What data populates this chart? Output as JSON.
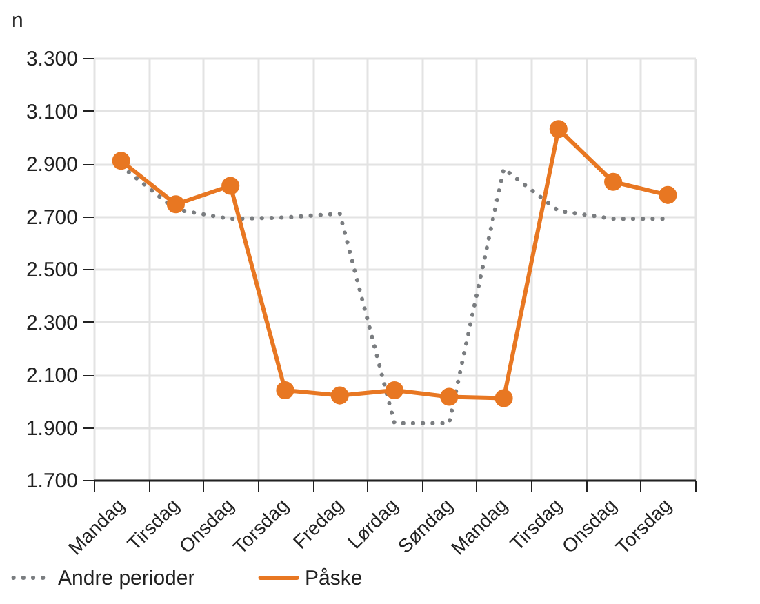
{
  "chart_data": {
    "type": "line",
    "ylabel": "n",
    "categories": [
      "Mandag",
      "Tirsdag",
      "Onsdag",
      "Torsdag",
      "Fredag",
      "Lørdag",
      "Søndag",
      "Mandag",
      "Tirsdag",
      "Onsdag",
      "Torsdag"
    ],
    "series": [
      {
        "name": "Andre perioder",
        "color": "#7a7d80",
        "line_style": "dotted",
        "marker": "none",
        "values": [
          2890,
          2725,
          2690,
          2695,
          2710,
          1915,
          1915,
          2880,
          2720,
          2690,
          2690
        ]
      },
      {
        "name": "Påske",
        "color": "#e87722",
        "line_style": "solid",
        "marker": "circle",
        "values": [
          2910,
          2745,
          2815,
          2040,
          2020,
          2040,
          2015,
          2010,
          3030,
          2830,
          2780
        ]
      }
    ],
    "ylim": [
      1700,
      3300
    ],
    "yticks": [
      {
        "value": 1700,
        "label": "1.700"
      },
      {
        "value": 1900,
        "label": "1.900"
      },
      {
        "value": 2100,
        "label": "2.100"
      },
      {
        "value": 2300,
        "label": "2.300"
      },
      {
        "value": 2500,
        "label": "2.500"
      },
      {
        "value": 2700,
        "label": "2.700"
      },
      {
        "value": 2900,
        "label": "2.900"
      },
      {
        "value": 3100,
        "label": "3.100"
      },
      {
        "value": 3300,
        "label": "3.300"
      }
    ],
    "grid": true,
    "legend": "bottom left"
  }
}
